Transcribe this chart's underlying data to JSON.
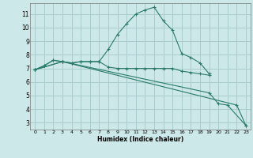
{
  "title": "",
  "xlabel": "Humidex (Indice chaleur)",
  "ylabel": "",
  "bg_color": "#cce8e8",
  "grid_color": "#aacccc",
  "line_color": "#2a7a6a",
  "xlim": [
    -0.5,
    23.5
  ],
  "ylim": [
    2.5,
    11.8
  ],
  "xticks": [
    0,
    1,
    2,
    3,
    4,
    5,
    6,
    7,
    8,
    9,
    10,
    11,
    12,
    13,
    14,
    15,
    16,
    17,
    18,
    19,
    20,
    21,
    22,
    23
  ],
  "yticks": [
    3,
    4,
    5,
    6,
    7,
    8,
    9,
    10,
    11
  ],
  "lines": [
    {
      "x": [
        0,
        1,
        2,
        3,
        4,
        5,
        6,
        7,
        8,
        9,
        10,
        11,
        12,
        13,
        14,
        15,
        16,
        17,
        18,
        19
      ],
      "y": [
        6.9,
        7.2,
        7.6,
        7.5,
        7.4,
        7.5,
        7.5,
        7.5,
        8.4,
        9.5,
        10.3,
        11.0,
        11.3,
        11.5,
        10.5,
        9.8,
        8.1,
        7.8,
        7.4,
        6.6
      ]
    },
    {
      "x": [
        0,
        1,
        2,
        3,
        4,
        5,
        6,
        7,
        8,
        9,
        10,
        11,
        12,
        13,
        14,
        15,
        16,
        17,
        18,
        19
      ],
      "y": [
        6.9,
        7.2,
        7.6,
        7.5,
        7.4,
        7.5,
        7.5,
        7.5,
        7.1,
        7.0,
        7.0,
        7.0,
        7.0,
        7.0,
        7.0,
        7.0,
        6.8,
        6.7,
        6.6,
        6.5
      ]
    },
    {
      "x": [
        0,
        3,
        19,
        20,
        21,
        23
      ],
      "y": [
        6.9,
        7.5,
        5.2,
        4.4,
        4.3,
        2.8
      ]
    },
    {
      "x": [
        0,
        3,
        22,
        23
      ],
      "y": [
        6.9,
        7.5,
        4.3,
        2.8
      ]
    }
  ]
}
